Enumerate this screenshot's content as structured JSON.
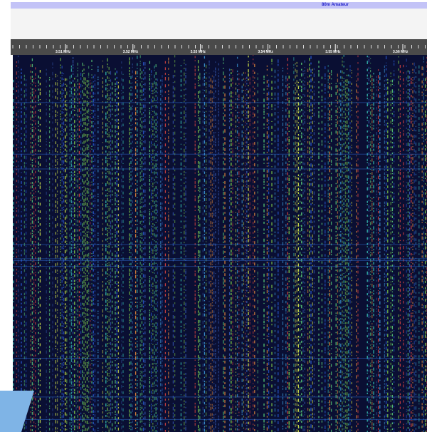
{
  "band": {
    "label": "80m Amateur"
  },
  "scale": {
    "labels": [
      "3.51 MHz",
      "3.52 MHz",
      "3.53 MHz",
      "3.54 MHz",
      "3.55 MHz",
      "3.56 MHz"
    ]
  }
}
